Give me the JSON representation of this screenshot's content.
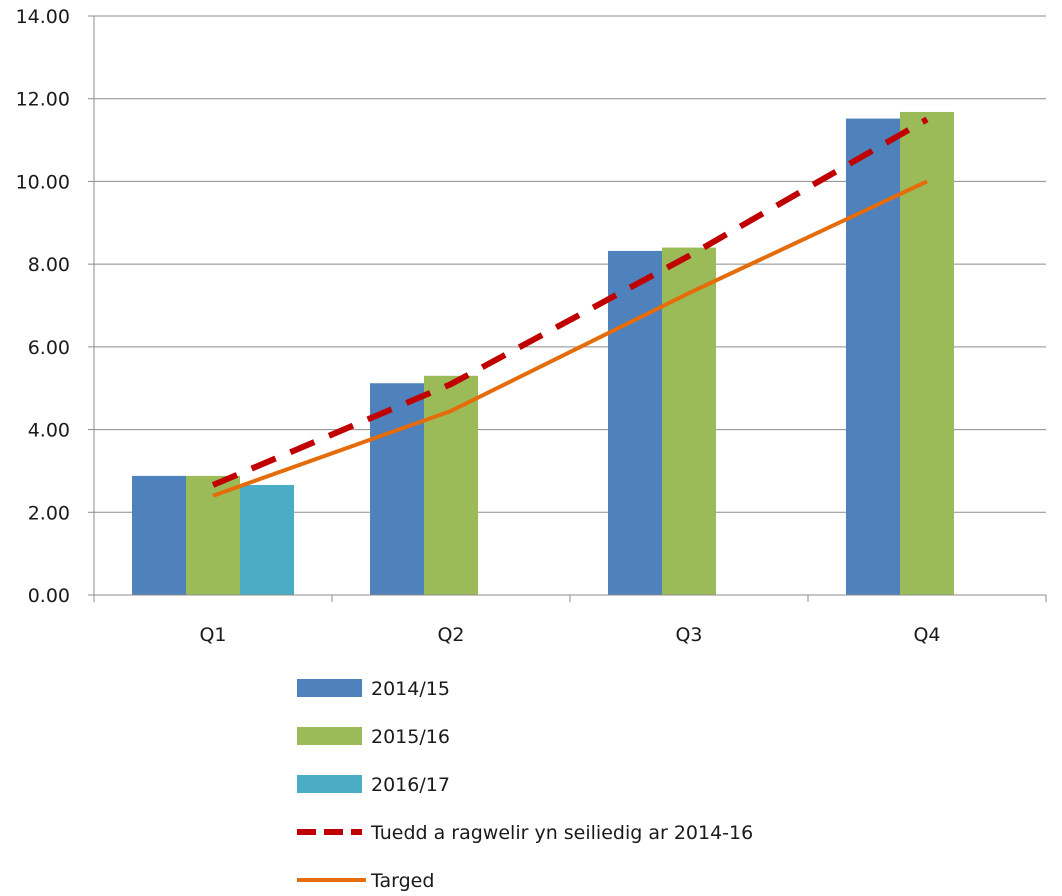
{
  "chart_data": {
    "type": "bar",
    "title": "",
    "xlabel": "",
    "ylabel": "",
    "categories": [
      "Q1",
      "Q2",
      "Q3",
      "Q4"
    ],
    "ylim": [
      0,
      14
    ],
    "yticks": [
      0,
      2,
      4,
      6,
      8,
      10,
      12,
      14
    ],
    "ytick_labels": [
      "0.00",
      "2.00",
      "4.00",
      "6.00",
      "8.00",
      "10.00",
      "12.00",
      "14.00"
    ],
    "grid": true,
    "legend_position": "bottom",
    "series": [
      {
        "name": "2014/15",
        "kind": "bar",
        "color": "#4F81BD",
        "values": [
          2.88,
          5.12,
          8.32,
          11.52
        ]
      },
      {
        "name": "2015/16",
        "kind": "bar",
        "color": "#9BBB59",
        "values": [
          2.88,
          5.3,
          8.4,
          11.68
        ]
      },
      {
        "name": "2016/17",
        "kind": "bar",
        "color": "#4BACC6",
        "values": [
          2.66,
          null,
          null,
          null
        ]
      },
      {
        "name": "Tuedd a ragwelir yn seiliedig ar 2014-16",
        "kind": "line",
        "dashed": true,
        "color": "#C00000",
        "values": [
          2.66,
          5.1,
          8.2,
          11.5
        ]
      },
      {
        "name": "Targed",
        "kind": "line",
        "dashed": false,
        "color": "#E46C0A",
        "values": [
          2.4,
          4.45,
          7.3,
          10.0
        ]
      }
    ]
  }
}
